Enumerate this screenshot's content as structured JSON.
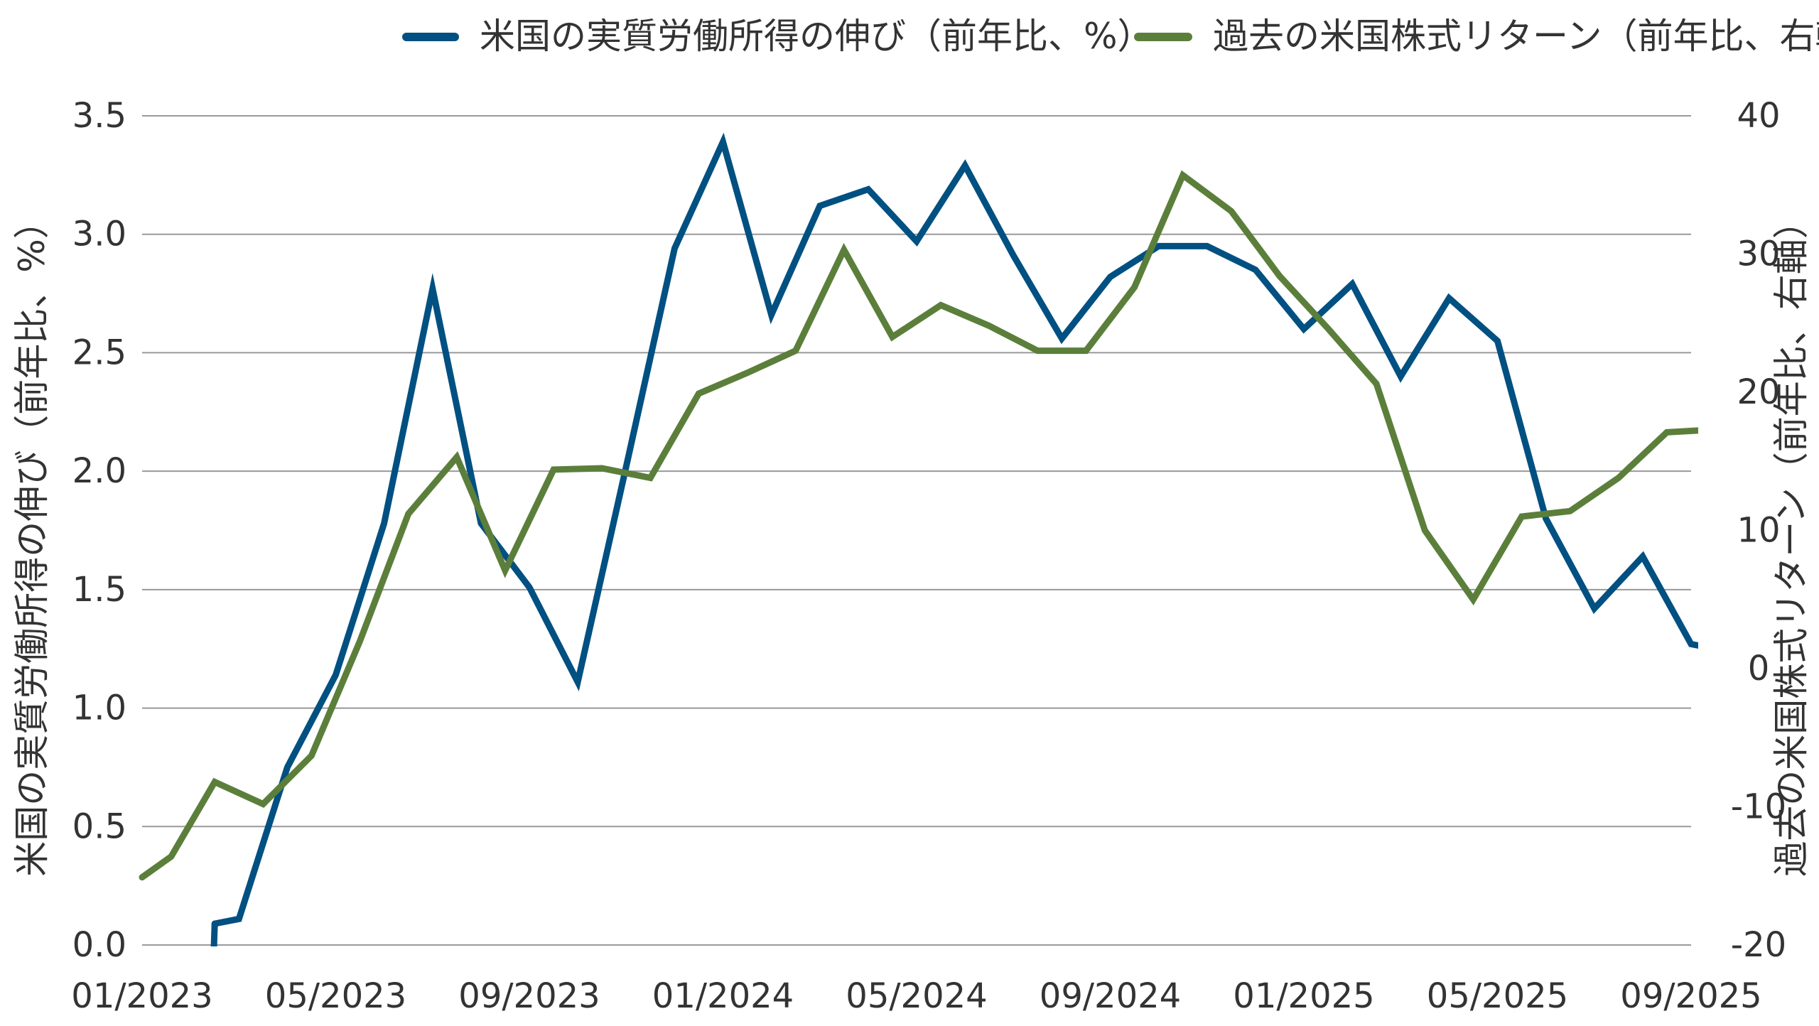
{
  "chart_data": {
    "type": "line",
    "x": [
      "01/2023",
      "02/2023",
      "03/2023",
      "04/2023",
      "05/2023",
      "06/2023",
      "07/2023",
      "08/2023",
      "09/2023",
      "10/2023",
      "11/2023",
      "12/2023",
      "01/2024",
      "02/2024",
      "03/2024",
      "04/2024",
      "05/2024",
      "06/2024",
      "07/2024",
      "08/2024",
      "09/2024",
      "10/2024",
      "11/2024",
      "12/2024",
      "01/2025",
      "02/2025",
      "03/2025",
      "04/2025",
      "05/2025",
      "06/2025",
      "07/2025",
      "08/2025",
      "09/2025"
    ],
    "x_tick_labels": [
      "01/2023",
      "05/2023",
      "09/2023",
      "01/2024",
      "05/2024",
      "09/2024",
      "01/2025",
      "05/2025",
      "09/2025"
    ],
    "series": [
      {
        "name": "米国の実質労働所得の伸び（前年比、%）",
        "axis": "left",
        "color": "#005082",
        "points": [
          [
            1.5,
            0.09
          ],
          [
            2,
            0.11
          ],
          [
            3,
            0.75
          ],
          [
            4,
            1.14
          ],
          [
            5,
            1.78
          ],
          [
            6,
            2.77
          ],
          [
            7,
            1.78
          ],
          [
            8,
            1.51
          ],
          [
            9,
            1.11
          ],
          [
            10,
            2.02
          ],
          [
            11,
            2.94
          ],
          [
            12,
            3.39
          ],
          [
            13,
            2.66
          ],
          [
            14,
            3.12
          ],
          [
            15,
            3.19
          ],
          [
            16,
            2.97
          ],
          [
            17,
            3.29
          ],
          [
            18,
            2.91
          ],
          [
            19,
            2.56
          ],
          [
            20,
            2.82
          ],
          [
            21,
            2.95
          ],
          [
            22,
            2.95
          ],
          [
            23,
            2.85
          ],
          [
            24,
            2.6
          ],
          [
            25,
            2.79
          ],
          [
            26,
            2.4
          ],
          [
            27,
            2.73
          ],
          [
            28,
            2.55
          ],
          [
            29,
            1.8
          ],
          [
            30,
            1.42
          ],
          [
            31,
            1.64
          ],
          [
            32,
            1.27
          ],
          [
            33,
            1.23
          ]
        ],
        "start_segment": [
          [
            1.4,
            -0.5
          ],
          [
            1.5,
            0.09
          ]
        ]
      },
      {
        "name": "過去の米国株式リターン（前年比、右軸）",
        "axis": "right",
        "color": "#5B7F3B",
        "points": [
          [
            0,
            -15.1
          ],
          [
            0.6,
            -13.6
          ],
          [
            1.5,
            -8.2
          ],
          [
            2.5,
            -9.8
          ],
          [
            3.5,
            -6.3
          ],
          [
            4.5,
            2.0
          ],
          [
            5.5,
            11.2
          ],
          [
            6.5,
            15.3
          ],
          [
            7.5,
            7.1
          ],
          [
            8.5,
            14.4
          ],
          [
            9.5,
            14.5
          ],
          [
            10.5,
            13.8
          ],
          [
            11.5,
            19.9
          ],
          [
            12.5,
            21.4
          ],
          [
            13.5,
            23.0
          ],
          [
            14.5,
            30.3
          ],
          [
            15.5,
            24.0
          ],
          [
            16.5,
            26.3
          ],
          [
            17.5,
            24.8
          ],
          [
            18.5,
            23.0
          ],
          [
            19.5,
            23.0
          ],
          [
            20.5,
            27.6
          ],
          [
            21.5,
            35.7
          ],
          [
            22.5,
            33.1
          ],
          [
            23.5,
            28.4
          ],
          [
            24.5,
            24.6
          ],
          [
            25.5,
            20.6
          ],
          [
            26.5,
            10.0
          ],
          [
            27.5,
            5.0
          ],
          [
            28.5,
            11.0
          ],
          [
            29.5,
            11.4
          ],
          [
            30.5,
            13.8
          ],
          [
            31.5,
            17.1
          ],
          [
            32.5,
            17.3
          ]
        ]
      }
    ],
    "y_left": {
      "label": "米国の実質労働所得の伸び（前年比、%）",
      "min": 0,
      "max": 3.5,
      "ticks": [
        0.0,
        0.5,
        1.0,
        1.5,
        2.0,
        2.5,
        3.0,
        3.5
      ],
      "tick_labels": [
        "0.0",
        "0.5",
        "1.0",
        "1.5",
        "2.0",
        "2.5",
        "3.0",
        "3.5"
      ]
    },
    "y_right": {
      "label": "過去の米国株式リターン（前年比、右軸）",
      "min": -20,
      "max": 40,
      "ticks": [
        -20,
        -10,
        0,
        10,
        20,
        30,
        40
      ],
      "tick_labels": [
        "-20",
        "-10",
        "0",
        "10",
        "20",
        "30",
        "40"
      ]
    },
    "grid": true,
    "legend_position": "top-right",
    "colors": {
      "grid": "#999999",
      "text": "#333333"
    }
  }
}
